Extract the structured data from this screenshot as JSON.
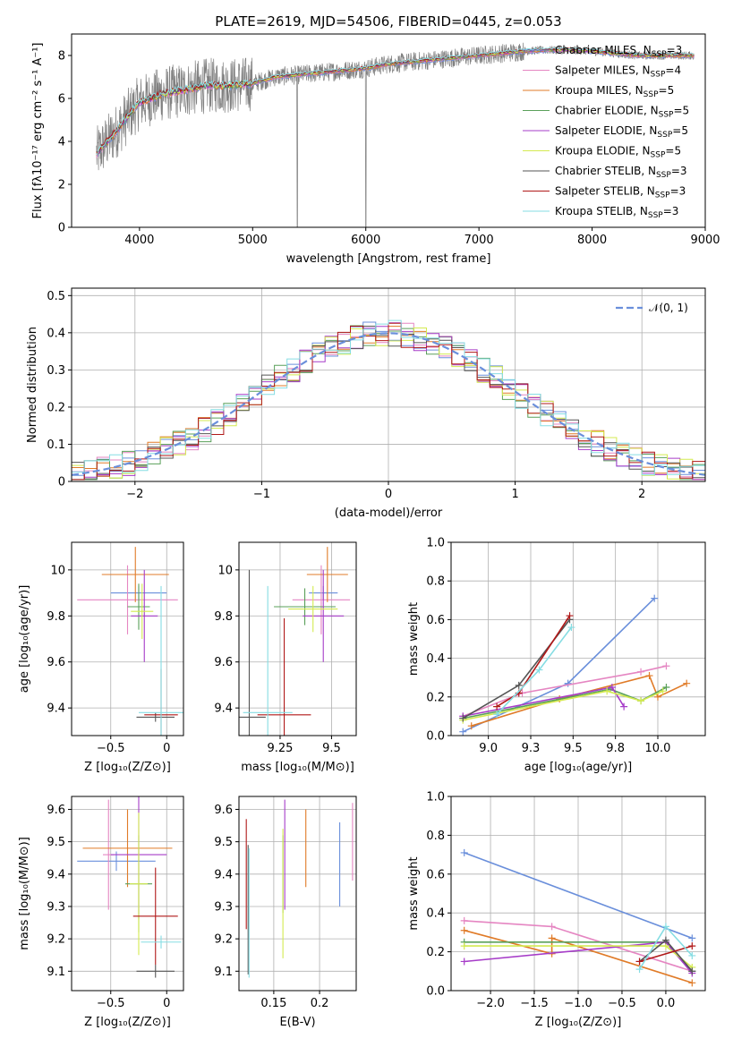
{
  "title": "PLATE=2619, MJD=54506, FIBERID=0445, z=0.053",
  "models": [
    {
      "name": "Chabrier MILES, N",
      "nssp": "3",
      "color": "#6a8fdb"
    },
    {
      "name": "Salpeter MILES, N",
      "nssp": "4",
      "color": "#e586c2"
    },
    {
      "name": "Kroupa MILES, N",
      "nssp": "5",
      "color": "#e07b28"
    },
    {
      "name": "Chabrier ELODIE, N",
      "nssp": "5",
      "color": "#5aa05a"
    },
    {
      "name": "Salpeter ELODIE, N",
      "nssp": "5",
      "color": "#a63cc8"
    },
    {
      "name": "Kroupa ELODIE, N",
      "nssp": "5",
      "color": "#d4ea50"
    },
    {
      "name": "Chabrier STELIB, N",
      "nssp": "3",
      "color": "#555555"
    },
    {
      "name": "Salpeter STELIB, N",
      "nssp": "3",
      "color": "#b01818"
    },
    {
      "name": "Kroupa STELIB, N",
      "nssp": "3",
      "color": "#86dde3"
    }
  ],
  "chart_data": [
    {
      "id": "spectrum",
      "type": "line",
      "xlabel": "wavelength [Angstrom, rest frame]",
      "ylabel": "Flux [fλ10⁻¹⁷ erg cm⁻² s⁻¹ A⁻¹]",
      "xlim": [
        3400,
        9000
      ],
      "ylim": [
        0,
        9
      ],
      "xticks": [
        4000,
        5000,
        6000,
        7000,
        8000,
        9000
      ],
      "yticks": [
        0,
        2,
        4,
        6,
        8
      ],
      "data_anchors": {
        "x": [
          3620,
          3700,
          3800,
          3900,
          4000,
          4200,
          4400,
          4600,
          4800,
          5000,
          5200,
          5400,
          5600,
          5800,
          6000,
          6200,
          6400,
          6600,
          6800,
          7000,
          7200,
          7400,
          7600,
          7800,
          8000,
          8200,
          8400,
          8600,
          8800,
          8900
        ],
        "y": [
          3.4,
          3.9,
          4.5,
          5.2,
          5.8,
          6.2,
          6.4,
          6.6,
          6.6,
          6.7,
          7.0,
          7.1,
          7.2,
          7.3,
          7.4,
          7.6,
          7.7,
          7.8,
          7.9,
          8.0,
          8.1,
          8.2,
          8.25,
          8.25,
          8.2,
          8.1,
          8.0,
          8.0,
          8.0,
          8.0
        ]
      },
      "grid": false,
      "legend": "right"
    },
    {
      "id": "residuals",
      "type": "step",
      "xlabel": "(data-model)/error",
      "ylabel": "Normed distribution",
      "xlim": [
        -2.5,
        2.5
      ],
      "ylim": [
        0,
        0.52
      ],
      "xticks": [
        -2,
        -1,
        0,
        1,
        2
      ],
      "yticks": [
        0.0,
        0.1,
        0.2,
        0.3,
        0.4,
        0.5
      ],
      "gaussian_label": "𝒩(0, 1)",
      "grid": true,
      "legend": "top-right"
    },
    {
      "id": "age_vs_Z",
      "type": "errorbar",
      "xlabel": "Z [log₁₀(Z/Z⊙)]",
      "ylabel": "age  [log₁₀(age/yr)]",
      "xlim": [
        -0.85,
        0.15
      ],
      "ylim": [
        9.28,
        10.12
      ],
      "xticks": [
        -0.5,
        0.0
      ],
      "yticks": [
        9.4,
        9.6,
        9.8,
        10.0
      ],
      "grid": true,
      "points": [
        {
          "model": 0,
          "x": -0.25,
          "y": 9.9,
          "xerr": 0.25,
          "yerr": 0.03
        },
        {
          "model": 1,
          "x": -0.35,
          "y": 9.87,
          "xerr": 0.45,
          "yerr": 0.15
        },
        {
          "model": 2,
          "x": -0.28,
          "y": 9.98,
          "xerr": 0.3,
          "yerr": 0.12
        },
        {
          "model": 3,
          "x": -0.25,
          "y": 9.84,
          "xerr": 0.1,
          "yerr": 0.1
        },
        {
          "model": 4,
          "x": -0.2,
          "y": 9.8,
          "xerr": 0.12,
          "yerr": 0.2
        },
        {
          "model": 5,
          "x": -0.22,
          "y": 9.82,
          "xerr": 0.1,
          "yerr": 0.12
        },
        {
          "model": 6,
          "x": -0.1,
          "y": 9.36,
          "xerr": 0.17,
          "yerr": 0.02
        },
        {
          "model": 7,
          "x": -0.05,
          "y": 9.37,
          "xerr": 0.15,
          "yerr": 0.2
        },
        {
          "model": 8,
          "x": -0.05,
          "y": 9.38,
          "xerr": 0.2,
          "yerr": 0.55
        }
      ]
    },
    {
      "id": "age_vs_mass",
      "type": "errorbar",
      "xlabel": "mass [log₁₀(M/M⊙)]",
      "ylabel": "",
      "xlim": [
        9.05,
        9.62
      ],
      "ylim": [
        9.28,
        10.12
      ],
      "xticks": [
        9.25,
        9.5
      ],
      "yticks": [
        9.4,
        9.6,
        9.8,
        10.0
      ],
      "grid": true,
      "points": [
        {
          "model": 0,
          "x": 9.46,
          "y": 9.9,
          "xerr": 0.07,
          "yerr": 0.03
        },
        {
          "model": 1,
          "x": 9.45,
          "y": 9.87,
          "xerr": 0.14,
          "yerr": 0.15
        },
        {
          "model": 2,
          "x": 9.48,
          "y": 9.98,
          "xerr": 0.1,
          "yerr": 0.12
        },
        {
          "model": 3,
          "x": 9.37,
          "y": 9.84,
          "xerr": 0.15,
          "yerr": 0.08
        },
        {
          "model": 4,
          "x": 9.46,
          "y": 9.8,
          "xerr": 0.1,
          "yerr": 0.2
        },
        {
          "model": 5,
          "x": 9.41,
          "y": 9.83,
          "xerr": 0.12,
          "yerr": 0.1
        },
        {
          "model": 6,
          "x": 9.1,
          "y": 9.36,
          "xerr": 0.08,
          "yerr": 0.64
        },
        {
          "model": 7,
          "x": 9.27,
          "y": 9.37,
          "xerr": 0.13,
          "yerr": 0.42
        },
        {
          "model": 8,
          "x": 9.19,
          "y": 9.38,
          "xerr": 0.12,
          "yerr": 0.55
        }
      ]
    },
    {
      "id": "weight_vs_age",
      "type": "line",
      "xlabel": "age  [log₁₀(age/yr)]",
      "ylabel": "mass weight",
      "xlim": [
        8.78,
        10.28
      ],
      "ylim": [
        0,
        1
      ],
      "xticks": [
        9.0,
        9.25,
        9.5,
        9.75,
        10.0
      ],
      "yticks": [
        0.0,
        0.2,
        0.4,
        0.6,
        0.8,
        1.0
      ],
      "grid": true,
      "series": [
        {
          "model": 0,
          "x": [
            8.85,
            9.47,
            9.98
          ],
          "y": [
            0.02,
            0.27,
            0.71
          ]
        },
        {
          "model": 1,
          "x": [
            8.85,
            9.2,
            9.9,
            10.05
          ],
          "y": [
            0.1,
            0.22,
            0.33,
            0.36
          ]
        },
        {
          "model": 2,
          "x": [
            8.9,
            9.42,
            9.95,
            10.0,
            10.17
          ],
          "y": [
            0.05,
            0.19,
            0.31,
            0.2,
            0.27
          ]
        },
        {
          "model": 3,
          "x": [
            8.85,
            9.72,
            9.9,
            10.05
          ],
          "y": [
            0.09,
            0.24,
            0.18,
            0.25
          ]
        },
        {
          "model": 4,
          "x": [
            8.85,
            9.73,
            9.8
          ],
          "y": [
            0.1,
            0.25,
            0.15
          ]
        },
        {
          "model": 5,
          "x": [
            8.85,
            9.7,
            9.9,
            10.03
          ],
          "y": [
            0.08,
            0.23,
            0.18,
            0.23
          ]
        },
        {
          "model": 6,
          "x": [
            8.85,
            9.18,
            9.48
          ],
          "y": [
            0.09,
            0.26,
            0.6
          ]
        },
        {
          "model": 7,
          "x": [
            9.05,
            9.18,
            9.48
          ],
          "y": [
            0.15,
            0.22,
            0.62
          ]
        },
        {
          "model": 8,
          "x": [
            9.05,
            9.3,
            9.49
          ],
          "y": [
            0.11,
            0.34,
            0.56
          ]
        }
      ]
    },
    {
      "id": "mass_vs_Z",
      "type": "errorbar",
      "xlabel": "Z [log₁₀(Z/Z⊙)]",
      "ylabel": "mass [log₁₀(M/M⊙)]",
      "xlim": [
        -0.85,
        0.15
      ],
      "ylim": [
        9.04,
        9.64
      ],
      "xticks": [
        -0.5,
        0.0
      ],
      "yticks": [
        9.1,
        9.2,
        9.3,
        9.4,
        9.5,
        9.6
      ],
      "grid": true,
      "points": [
        {
          "model": 0,
          "x": -0.45,
          "y": 9.44,
          "xerr": 0.35,
          "yerr": 0.03
        },
        {
          "model": 1,
          "x": -0.52,
          "y": 9.46,
          "xerr": 0.05,
          "yerr": 0.17
        },
        {
          "model": 2,
          "x": -0.35,
          "y": 9.48,
          "xerr": 0.4,
          "yerr": 0.12
        },
        {
          "model": 3,
          "x": -0.25,
          "y": 9.37,
          "xerr": 0.12,
          "yerr": 0.15
        },
        {
          "model": 4,
          "x": -0.25,
          "y": 9.46,
          "xerr": 0.25,
          "yerr": 0.2
        },
        {
          "model": 5,
          "x": -0.25,
          "y": 9.37,
          "xerr": 0.08,
          "yerr": 0.22
        },
        {
          "model": 6,
          "x": -0.1,
          "y": 9.1,
          "xerr": 0.17,
          "yerr": 0.02
        },
        {
          "model": 7,
          "x": -0.1,
          "y": 9.27,
          "xerr": 0.2,
          "yerr": 0.15
        },
        {
          "model": 8,
          "x": -0.05,
          "y": 9.19,
          "xerr": 0.18,
          "yerr": 0.02
        }
      ]
    },
    {
      "id": "mass_vs_ebv",
      "type": "errorbar",
      "xlabel": "E(B-V)",
      "ylabel": "",
      "xlim": [
        0.112,
        0.24
      ],
      "ylim": [
        9.04,
        9.64
      ],
      "xticks": [
        0.15,
        0.2
      ],
      "yticks": [
        9.1,
        9.2,
        9.3,
        9.4,
        9.5,
        9.6
      ],
      "grid": true,
      "points": [
        {
          "model": 0,
          "x": 0.222,
          "y": 9.43,
          "yerr": 0.13
        },
        {
          "model": 1,
          "x": 0.236,
          "y": 9.5,
          "yerr": 0.12
        },
        {
          "model": 2,
          "x": 0.185,
          "y": 9.48,
          "yerr": 0.12
        },
        {
          "model": 3,
          "x": 0.16,
          "y": 9.4,
          "yerr": 0.12
        },
        {
          "model": 4,
          "x": 0.162,
          "y": 9.46,
          "yerr": 0.17
        },
        {
          "model": 5,
          "x": 0.16,
          "y": 9.34,
          "yerr": 0.2
        },
        {
          "model": 6,
          "x": 0.122,
          "y": 9.29,
          "yerr": 0.2
        },
        {
          "model": 7,
          "x": 0.12,
          "y": 9.4,
          "yerr": 0.17
        },
        {
          "model": 8,
          "x": 0.123,
          "y": 9.28,
          "yerr": 0.2
        }
      ]
    },
    {
      "id": "weight_vs_Z",
      "type": "line",
      "xlabel": "Z [log₁₀(Z/Z⊙)]",
      "ylabel": "mass weight",
      "xlim": [
        -2.45,
        0.45
      ],
      "ylim": [
        0,
        1
      ],
      "xticks": [
        -2.0,
        -1.5,
        -1.0,
        -0.5,
        0.0
      ],
      "yticks": [
        0.0,
        0.2,
        0.4,
        0.6,
        0.8,
        1.0
      ],
      "grid": true,
      "series": [
        {
          "model": 0,
          "x": [
            -2.3,
            0.3
          ],
          "y": [
            0.71,
            0.27
          ]
        },
        {
          "model": 1,
          "x": [
            -2.3,
            -1.3,
            0.3
          ],
          "y": [
            0.36,
            0.33,
            0.1
          ]
        },
        {
          "model": 2,
          "x": [
            -2.3,
            -1.3,
            -1.3,
            0.3
          ],
          "y": [
            0.31,
            0.19,
            0.27,
            0.04
          ]
        },
        {
          "model": 3,
          "x": [
            -2.3,
            0.0,
            0.3
          ],
          "y": [
            0.25,
            0.25,
            0.1
          ]
        },
        {
          "model": 4,
          "x": [
            -2.3,
            0.0,
            0.3
          ],
          "y": [
            0.15,
            0.25,
            0.09
          ]
        },
        {
          "model": 5,
          "x": [
            -2.3,
            0.0,
            0.3
          ],
          "y": [
            0.23,
            0.23,
            0.12
          ]
        },
        {
          "model": 6,
          "x": [
            -0.3,
            0.0,
            0.3
          ],
          "y": [
            0.15,
            0.26,
            0.1
          ]
        },
        {
          "model": 7,
          "x": [
            -0.3,
            0.3
          ],
          "y": [
            0.15,
            0.23
          ]
        },
        {
          "model": 8,
          "x": [
            -0.3,
            0.0,
            0.3
          ],
          "y": [
            0.11,
            0.33,
            0.18
          ]
        }
      ]
    }
  ]
}
